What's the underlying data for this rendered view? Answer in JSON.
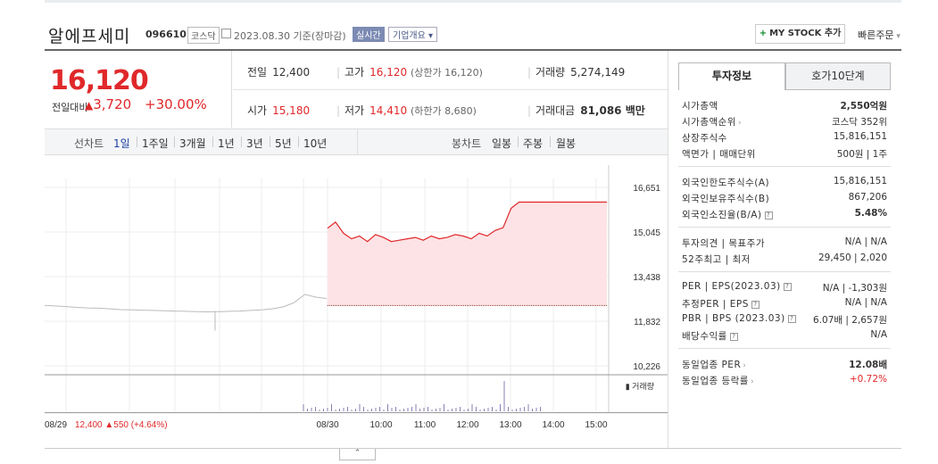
{
  "header": {
    "name": "알에프세미",
    "code": "096610",
    "market": "코스닥",
    "date": "2023.08.30 기준(장마감)",
    "realtime": "실시간",
    "company_info": "기업개요",
    "my_stock": "MY STOCK 추가",
    "quick_order": "빠른주문"
  },
  "price": {
    "current": "16,120",
    "change_label": "전일대비",
    "change": "3,720",
    "change_pct": "+30.00%"
  },
  "stats": {
    "prev_label": "전일",
    "prev": "12,400",
    "high_label": "고가",
    "high": "16,120",
    "upper_limit": "(상한가 16,120)",
    "volume_label": "거래량",
    "volume": "5,274,149",
    "open_label": "시가",
    "open": "15,180",
    "low_label": "저가",
    "low": "14,410",
    "lower_limit": "(하한가 8,680)",
    "amount_label": "거래대금",
    "amount": "81,086 백만"
  },
  "periods": {
    "line_label": "선차트",
    "items": [
      "1일",
      "1주일",
      "3개월",
      "1년",
      "3년",
      "5년",
      "10년"
    ],
    "active": "1일",
    "candle_label": "봉차트",
    "candle_items": [
      "일봉",
      "주봉",
      "월봉"
    ]
  },
  "chart_data": {
    "type": "line",
    "y_ticks": [
      "16,651",
      "15,045",
      "13,438",
      "11,832",
      "10,226"
    ],
    "ylim": [
      10226,
      16651
    ],
    "x_ticks": [
      "08/30",
      "10:00",
      "11:00",
      "12:00",
      "13:00",
      "14:00",
      "15:00"
    ],
    "prev_day": "08/29",
    "prev_close": "12,400",
    "prev_change": "▲550",
    "prev_change_pct": "(+4.64%)",
    "volume_label": "거래량",
    "colors": {
      "up": "#e0282a",
      "fill": "#fde3e5",
      "prev": "#bbbbbb",
      "volume": "#8c7bb5"
    },
    "series_prev": [
      12400,
      12380,
      12360,
      12330,
      12310,
      12300,
      12280,
      12250,
      12240,
      12230,
      12220,
      12210,
      12200,
      12190,
      12180,
      12170,
      12180,
      12190,
      12200,
      12220,
      12240,
      12280,
      12350,
      12500,
      12800,
      12700,
      12650
    ],
    "series_today": [
      15180,
      15400,
      15000,
      14800,
      14900,
      14700,
      14950,
      14850,
      14700,
      14750,
      14800,
      14850,
      14750,
      14900,
      14800,
      14850,
      14950,
      14900,
      14800,
      15000,
      14900,
      15100,
      15200,
      15900,
      16120,
      16120,
      16120,
      16120,
      16120,
      16120,
      16120,
      16120,
      16120,
      16120,
      16120,
      16120
    ]
  },
  "info": {
    "tabs": [
      "투자정보",
      "호가10단계"
    ],
    "group1": [
      {
        "k": "시가총액",
        "v": "2,550억원",
        "strong": true
      },
      {
        "k": "시가총액순위",
        "v": "코스닥 352위",
        "chev": true
      },
      {
        "k": "상장주식수",
        "v": "15,816,151"
      },
      {
        "k": "액면가 | 매매단위",
        "v": "500원 | 1주"
      }
    ],
    "group2": [
      {
        "k": "외국인한도주식수(A)",
        "v": "15,816,151"
      },
      {
        "k": "외국인보유주식수(B)",
        "v": "867,206"
      },
      {
        "k": "외국인소진율(B/A)",
        "v": "5.48%",
        "strong": true,
        "qm": true
      }
    ],
    "group3": [
      {
        "k": "투자의견 | 목표주가",
        "v": "N/A | N/A"
      },
      {
        "k": "52주최고 | 최저",
        "v": "29,450 | 2,020"
      }
    ],
    "group4": [
      {
        "k": "PER | EPS(2023.03)",
        "v": "N/A | -1,303원",
        "qm": true
      },
      {
        "k": "추정PER | EPS",
        "v": "N/A | N/A",
        "qm": true
      },
      {
        "k": "PBR | BPS (2023.03)",
        "v": "6.07배 | 2,657원",
        "qm": true
      },
      {
        "k": "배당수익률",
        "v": "N/A",
        "qm": true
      }
    ],
    "group5": [
      {
        "k": "동일업종 PER",
        "v": "12.08배",
        "strong": true,
        "chev": true
      },
      {
        "k": "동일업종 등락률",
        "v": "+0.72%",
        "red": true,
        "chev": true
      }
    ]
  }
}
